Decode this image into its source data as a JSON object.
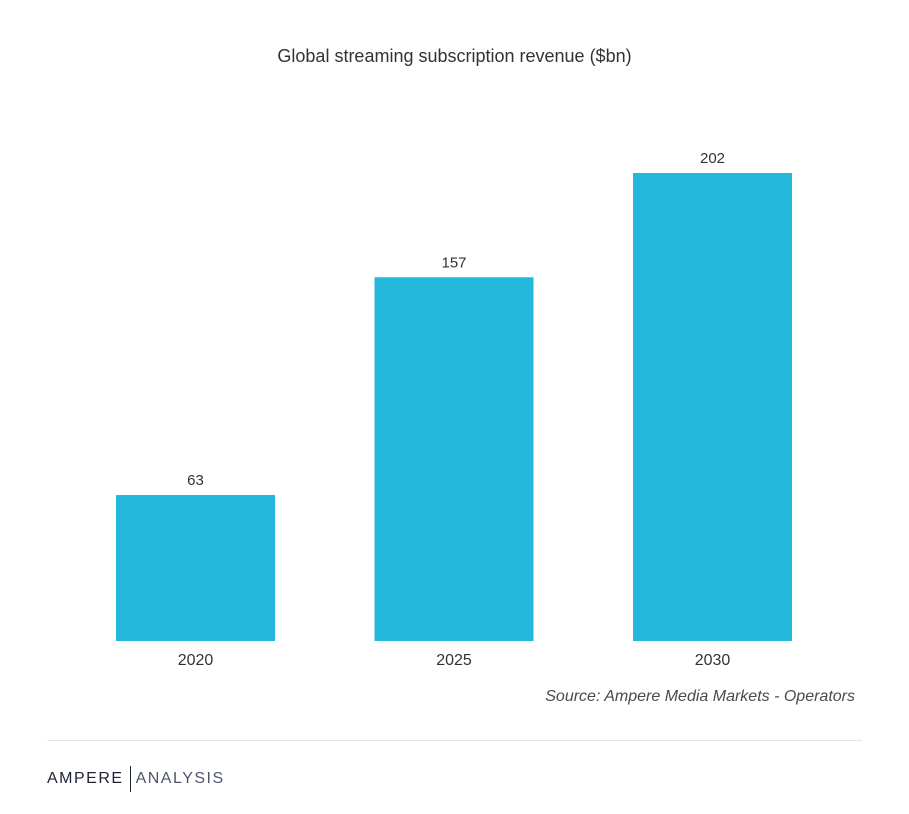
{
  "chart_data": {
    "type": "bar",
    "title": "Global streaming subscription revenue ($bn)",
    "categories": [
      "2020",
      "2025",
      "2030"
    ],
    "values": [
      63,
      157,
      202
    ],
    "xlabel": "",
    "ylabel": "",
    "ylim": [
      0,
      202
    ],
    "grid": false,
    "legend": "none",
    "bar_color": "#23b7db"
  },
  "source_text": "Source: Ampere Media Markets - Operators",
  "brand": {
    "primary": "AMPERE",
    "secondary": "ANALYSIS"
  },
  "colors": {
    "bar": "#23b7db",
    "text": "#333333",
    "divider": "#e6e6e6",
    "brand": "#1e2236"
  }
}
